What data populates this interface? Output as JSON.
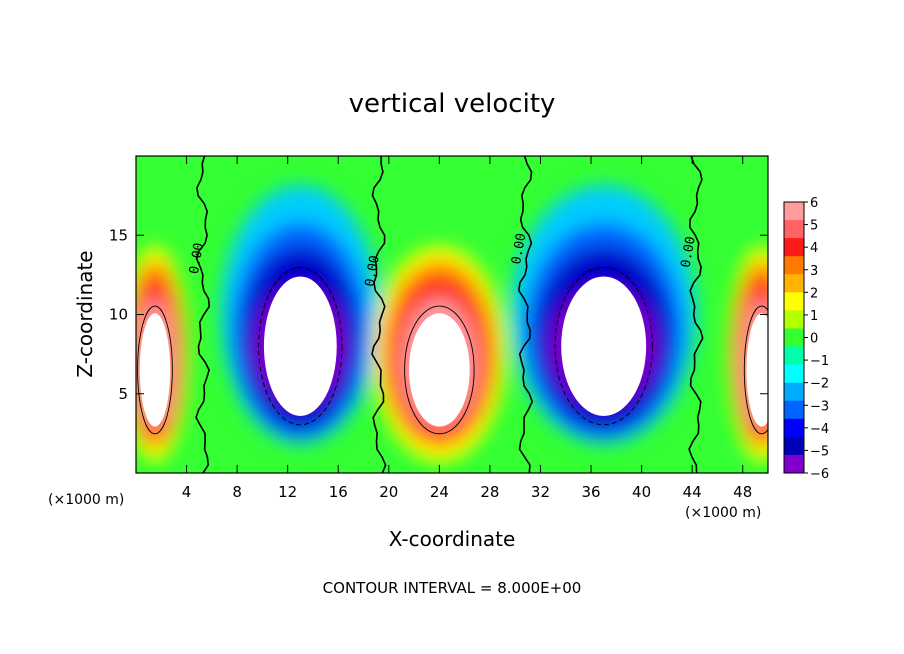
{
  "chart_data": {
    "type": "heatmap",
    "title": "vertical velocity",
    "xlabel": "X-coordinate",
    "ylabel": "Z-coordinate",
    "x_units": "(×1000 m)",
    "z_units": "(×1000 m)",
    "xlim": [
      0,
      50
    ],
    "ylim": [
      0,
      20
    ],
    "x_ticks": [
      "4",
      "8",
      "12",
      "16",
      "20",
      "24",
      "28",
      "32",
      "36",
      "40",
      "44",
      "48"
    ],
    "x_tick_values": [
      4,
      8,
      12,
      16,
      20,
      24,
      28,
      32,
      36,
      40,
      44,
      48
    ],
    "y_ticks": [
      "5",
      "10",
      "15"
    ],
    "y_tick_values": [
      5,
      10,
      15
    ],
    "colorbar": {
      "labels": [
        "6",
        "5",
        "4",
        "3",
        "2",
        "1",
        "0",
        "−1",
        "−2",
        "−3",
        "−4",
        "−5",
        "−6"
      ],
      "min": -6,
      "max": 6,
      "colors": [
        "#ff9c9c",
        "#ff6464",
        "#ff1a1a",
        "#ff7a00",
        "#ffb300",
        "#ffff00",
        "#b4ff00",
        "#33ff33",
        "#00ffaa",
        "#00ffff",
        "#00aaff",
        "#0064ff",
        "#0000ff",
        "#0000b4",
        "#7f00cc"
      ]
    },
    "contour_labels": [
      "0.00",
      "0.00",
      "0.00",
      "0.00"
    ],
    "contour_interval_text": "CONTOUR INTERVAL = 8.000E+00",
    "features": [
      {
        "kind": "updraft",
        "x_center": 1.5,
        "x_range": [
          0,
          5
        ],
        "z_range": [
          1,
          14
        ]
      },
      {
        "kind": "downdraft",
        "x_center": 13,
        "x_range": [
          6,
          18
        ],
        "z_range": [
          1,
          17
        ]
      },
      {
        "kind": "updraft",
        "x_center": 24,
        "x_range": [
          19,
          29
        ],
        "z_range": [
          1,
          14
        ]
      },
      {
        "kind": "downdraft",
        "x_center": 37,
        "x_range": [
          30,
          44
        ],
        "z_range": [
          1,
          17
        ]
      },
      {
        "kind": "updraft",
        "x_center": 49.5,
        "x_range": [
          45,
          50
        ],
        "z_range": [
          1,
          14
        ]
      }
    ]
  }
}
